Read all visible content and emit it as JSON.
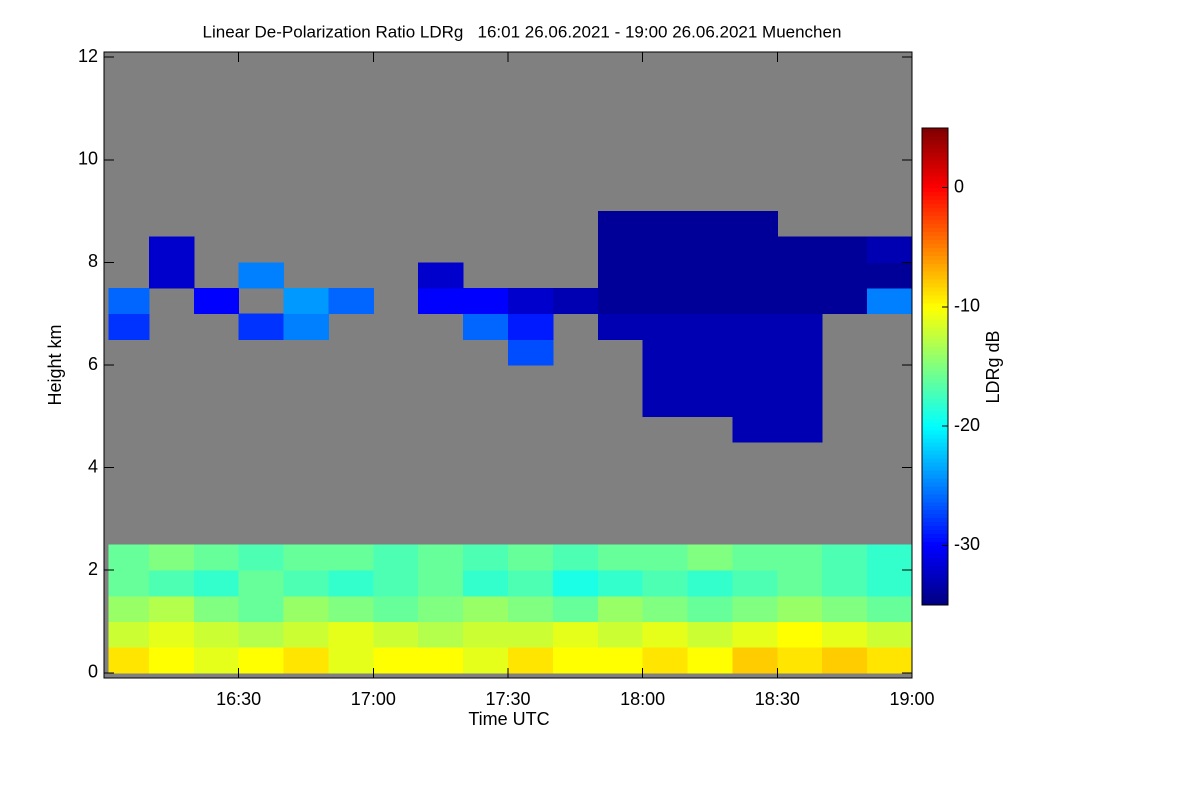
{
  "chart_data": {
    "type": "heatmap",
    "title": "Linear De-Polarization Ratio LDRg   16:01 26.06.2021 - 19:00 26.06.2021 Muenchen",
    "xlabel": "Time UTC",
    "ylabel": "Height km",
    "background": "#808080",
    "xlim": [
      16.0,
      19.0
    ],
    "xticks": [
      {
        "value": 16.5,
        "label": "16:30"
      },
      {
        "value": 17,
        "label": "17:00"
      },
      {
        "value": 17.5,
        "label": "17:30"
      },
      {
        "value": 18,
        "label": "18:00"
      },
      {
        "value": 18.5,
        "label": "18:30"
      },
      {
        "value": 19,
        "label": "19:00"
      }
    ],
    "ylim": [
      -0.1,
      12.1
    ],
    "yticks": [
      0,
      2,
      4,
      6,
      8,
      10,
      12
    ],
    "xbins": [
      16.0167,
      16.1667,
      16.3333,
      16.5,
      16.6667,
      16.8333,
      17,
      17.1667,
      17.3333,
      17.5,
      17.6667,
      17.8333,
      18,
      18.1667,
      18.3333,
      18.5,
      18.6667,
      18.8333,
      19
    ],
    "ybins": [
      0,
      0.5,
      1,
      1.5,
      2,
      2.5,
      3,
      3.5,
      4,
      4.5,
      5,
      5.5,
      6,
      6.5,
      7,
      7.5,
      8,
      8.5,
      9,
      9.5,
      10,
      10.5,
      11,
      11.5,
      12
    ],
    "z": [
      [
        -9,
        -10,
        -11,
        -10,
        -9,
        -11,
        -10,
        -10,
        -11,
        -9,
        -10,
        -10,
        -9,
        -10,
        -8,
        -9,
        -8,
        -9
      ],
      [
        -12,
        -11,
        -12,
        -13,
        -12,
        -11,
        -12,
        -13,
        -12,
        -12,
        -11,
        -12,
        -11,
        -12,
        -11,
        -10,
        -11,
        -12
      ],
      [
        -14,
        -13,
        -15,
        -16,
        -14,
        -15,
        -16,
        -15,
        -14,
        -15,
        -16,
        -14,
        -15,
        -16,
        -15,
        -14,
        -15,
        -16
      ],
      [
        -16,
        -17,
        -18,
        -16,
        -17,
        -18,
        -17,
        -16,
        -18,
        -17,
        -19,
        -18,
        -17,
        -18,
        -17,
        -16,
        -17,
        -18
      ],
      [
        -16,
        -15,
        -16,
        -17,
        -16,
        -16,
        -17,
        -16,
        -17,
        -16,
        -17,
        -16,
        -16,
        -15,
        -16,
        -16,
        -17,
        -18
      ],
      [
        null,
        null,
        null,
        null,
        null,
        null,
        null,
        null,
        null,
        null,
        null,
        null,
        null,
        null,
        null,
        null,
        null,
        null
      ],
      [
        null,
        null,
        null,
        null,
        null,
        null,
        null,
        null,
        null,
        null,
        null,
        null,
        null,
        null,
        null,
        null,
        null,
        null
      ],
      [
        null,
        null,
        null,
        null,
        null,
        null,
        null,
        null,
        null,
        null,
        null,
        null,
        null,
        null,
        null,
        null,
        null,
        null
      ],
      [
        null,
        null,
        null,
        null,
        null,
        null,
        null,
        null,
        null,
        null,
        null,
        null,
        null,
        null,
        null,
        null,
        null,
        null
      ],
      [
        null,
        null,
        null,
        null,
        null,
        null,
        null,
        null,
        null,
        null,
        null,
        null,
        null,
        null,
        -33,
        -33,
        null,
        null
      ],
      [
        null,
        null,
        null,
        null,
        null,
        null,
        null,
        null,
        null,
        null,
        null,
        null,
        -33,
        -33,
        -33,
        -33,
        null,
        null
      ],
      [
        null,
        null,
        null,
        null,
        null,
        null,
        null,
        null,
        null,
        null,
        null,
        null,
        -33,
        -33,
        -33,
        -33,
        null,
        null
      ],
      [
        null,
        null,
        null,
        null,
        null,
        null,
        null,
        null,
        null,
        -27,
        null,
        null,
        -33,
        -33,
        -33,
        -33,
        null,
        null
      ],
      [
        -28,
        null,
        null,
        -28,
        -25,
        null,
        null,
        null,
        -26,
        -29,
        null,
        -33,
        -33,
        -33,
        -33,
        -33,
        null,
        null
      ],
      [
        -26,
        null,
        -30,
        null,
        -24,
        -26,
        null,
        -30,
        -30,
        -32,
        -33,
        -34,
        -34,
        -34,
        -34,
        -34,
        -34,
        -25
      ],
      [
        null,
        -32,
        null,
        -25,
        null,
        null,
        null,
        -32,
        null,
        null,
        null,
        -34,
        -34,
        -34,
        -34,
        -34,
        -34,
        -34
      ],
      [
        null,
        -32,
        null,
        null,
        null,
        null,
        null,
        null,
        null,
        null,
        null,
        -34,
        -34,
        -34,
        -34,
        -34,
        -34,
        -33
      ],
      [
        null,
        null,
        null,
        null,
        null,
        null,
        null,
        null,
        null,
        null,
        null,
        -34,
        -34,
        -34,
        -34,
        null,
        null,
        null
      ],
      [
        null,
        null,
        null,
        null,
        null,
        null,
        null,
        null,
        null,
        null,
        null,
        null,
        null,
        null,
        null,
        null,
        null,
        null
      ],
      [
        null,
        null,
        null,
        null,
        null,
        null,
        null,
        null,
        null,
        null,
        null,
        null,
        null,
        null,
        null,
        null,
        null,
        null
      ],
      [
        null,
        null,
        null,
        null,
        null,
        null,
        null,
        null,
        null,
        null,
        null,
        null,
        null,
        null,
        null,
        null,
        null,
        null
      ],
      [
        null,
        null,
        null,
        null,
        null,
        null,
        null,
        null,
        null,
        null,
        null,
        null,
        null,
        null,
        null,
        null,
        null,
        null
      ],
      [
        null,
        null,
        null,
        null,
        null,
        null,
        null,
        null,
        null,
        null,
        null,
        null,
        null,
        null,
        null,
        null,
        null,
        null
      ],
      [
        null,
        null,
        null,
        null,
        null,
        null,
        null,
        null,
        null,
        null,
        null,
        null,
        null,
        null,
        null,
        null,
        null,
        null
      ]
    ],
    "colorbar": {
      "label": "LDRg dB",
      "lim": [
        -35,
        5
      ],
      "ticks": [
        -30,
        -20,
        -10,
        0
      ],
      "colormap": "jet"
    }
  }
}
